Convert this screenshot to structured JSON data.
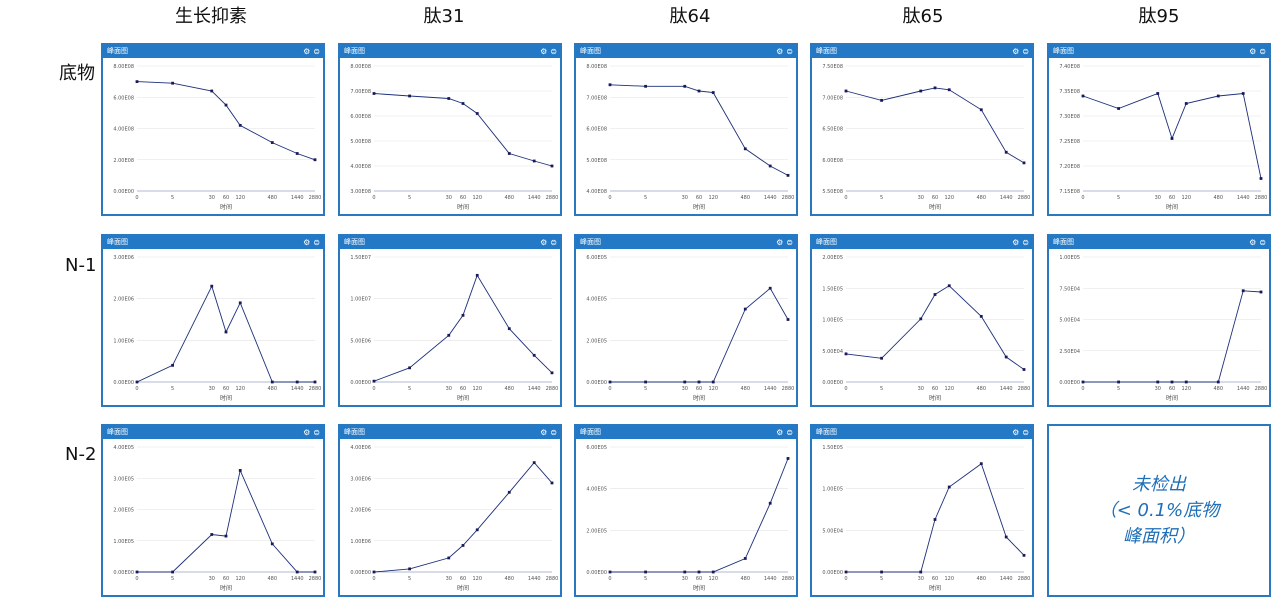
{
  "column_headers": [
    "生长抑素",
    "肽31",
    "肽64",
    "肽65",
    "肽95"
  ],
  "row_headers": [
    "底物",
    "N-1",
    "N-2"
  ],
  "panel_title": "峰面图",
  "icons": [
    "gear-icon",
    "download-icon"
  ],
  "not_detected": {
    "line1": "未检出",
    "line2": "（< 0.1%底物",
    "line3": "峰面积）"
  },
  "colors": {
    "frame": "#2a78bf",
    "header": "#2379c6",
    "line": "#1c2f7a",
    "point": "#1a1a5a",
    "grid": "#e2e2e2",
    "note": "#1f6fb8"
  },
  "chart_data": [
    {
      "type": "line",
      "row": 0,
      "col": 0,
      "xlabel": "时间",
      "categories": [
        "0",
        "5",
        "30",
        "60",
        "120",
        "480",
        "1440",
        "2880"
      ],
      "yticks": [
        "0.00E00",
        "2.00E08",
        "4.00E08",
        "6.00E08",
        "8.00E08"
      ],
      "ylim": [
        0,
        800000000
      ],
      "values": [
        700000000,
        690000000,
        640000000,
        550000000,
        420000000,
        310000000,
        240000000,
        200000000
      ]
    },
    {
      "type": "line",
      "row": 0,
      "col": 1,
      "xlabel": "时间",
      "categories": [
        "0",
        "5",
        "30",
        "60",
        "120",
        "480",
        "1440",
        "2880"
      ],
      "yticks": [
        "3.00E08",
        "4.00E08",
        "5.00E08",
        "6.00E08",
        "7.00E08",
        "8.00E08"
      ],
      "ylim": [
        300000000,
        800000000
      ],
      "values": [
        690000000,
        680000000,
        670000000,
        650000000,
        610000000,
        450000000,
        420000000,
        400000000
      ]
    },
    {
      "type": "line",
      "row": 0,
      "col": 2,
      "xlabel": "时间",
      "categories": [
        "0",
        "5",
        "30",
        "60",
        "120",
        "480",
        "1440",
        "2880"
      ],
      "yticks": [
        "4.00E08",
        "5.00E08",
        "6.00E08",
        "7.00E08",
        "8.00E08"
      ],
      "ylim": [
        400000000,
        800000000
      ],
      "values": [
        740000000,
        735000000,
        735000000,
        720000000,
        715000000,
        535000000,
        480000000,
        450000000
      ]
    },
    {
      "type": "line",
      "row": 0,
      "col": 3,
      "xlabel": "时间",
      "categories": [
        "0",
        "5",
        "30",
        "60",
        "120",
        "480",
        "1440",
        "2880"
      ],
      "yticks": [
        "5.50E08",
        "6.00E08",
        "6.50E08",
        "7.00E08",
        "7.50E08"
      ],
      "ylim": [
        550000000,
        750000000
      ],
      "values": [
        710000000,
        695000000,
        710000000,
        715000000,
        712000000,
        680000000,
        612000000,
        595000000
      ]
    },
    {
      "type": "line",
      "row": 0,
      "col": 4,
      "xlabel": "时间",
      "categories": [
        "0",
        "5",
        "30",
        "60",
        "120",
        "480",
        "1440",
        "2880"
      ],
      "yticks": [
        "7.15E08",
        "7.20E08",
        "7.25E08",
        "7.30E08",
        "7.35E08",
        "7.40E08"
      ],
      "ylim": [
        715000000,
        740000000
      ],
      "values": [
        734000000,
        731500000,
        734500000,
        725500000,
        732500000,
        734000000,
        734500000,
        717500000
      ]
    },
    {
      "type": "line",
      "row": 1,
      "col": 0,
      "xlabel": "时间",
      "categories": [
        "0",
        "5",
        "30",
        "60",
        "120",
        "480",
        "1440",
        "2880"
      ],
      "yticks": [
        "0.00E00",
        "1.00E06",
        "2.00E06",
        "3.00E06"
      ],
      "ylim": [
        0,
        3000000
      ],
      "values": [
        0,
        400000,
        2300000,
        1200000,
        1900000,
        0,
        0,
        0
      ]
    },
    {
      "type": "line",
      "row": 1,
      "col": 1,
      "xlabel": "时间",
      "categories": [
        "0",
        "5",
        "30",
        "60",
        "120",
        "480",
        "1440",
        "2880"
      ],
      "yticks": [
        "0.00E00",
        "5.00E06",
        "1.00E07",
        "1.50E07"
      ],
      "ylim": [
        0,
        15000000
      ],
      "values": [
        100000,
        1700000,
        5600000,
        8000000,
        12800000,
        6400000,
        3200000,
        1100000
      ]
    },
    {
      "type": "line",
      "row": 1,
      "col": 2,
      "xlabel": "时间",
      "categories": [
        "0",
        "5",
        "30",
        "60",
        "120",
        "480",
        "1440",
        "2880"
      ],
      "yticks": [
        "0.00E00",
        "2.00E05",
        "4.00E05",
        "6.00E05"
      ],
      "ylim": [
        0,
        600000
      ],
      "values": [
        0,
        0,
        0,
        0,
        0,
        350000,
        450000,
        300000
      ]
    },
    {
      "type": "line",
      "row": 1,
      "col": 3,
      "xlabel": "时间",
      "categories": [
        "0",
        "5",
        "30",
        "60",
        "120",
        "480",
        "1440",
        "2880"
      ],
      "yticks": [
        "0.00E00",
        "5.00E04",
        "1.00E05",
        "1.50E05",
        "2.00E05"
      ],
      "ylim": [
        0,
        200000
      ],
      "values": [
        45000,
        38000,
        101000,
        140000,
        154000,
        105000,
        40000,
        20000
      ]
    },
    {
      "type": "line",
      "row": 1,
      "col": 4,
      "xlabel": "时间",
      "categories": [
        "0",
        "5",
        "30",
        "60",
        "120",
        "480",
        "1440",
        "2880"
      ],
      "yticks": [
        "0.00E00",
        "2.50E04",
        "5.00E04",
        "7.50E04",
        "1.00E05"
      ],
      "ylim": [
        0,
        100000
      ],
      "values": [
        0,
        0,
        0,
        0,
        0,
        0,
        73000,
        72000
      ]
    },
    {
      "type": "line",
      "row": 2,
      "col": 0,
      "xlabel": "时间",
      "categories": [
        "0",
        "5",
        "30",
        "60",
        "120",
        "480",
        "1440",
        "2880"
      ],
      "yticks": [
        "0.00E00",
        "1.00E05",
        "2.00E05",
        "3.00E05",
        "4.00E05"
      ],
      "ylim": [
        0,
        400000
      ],
      "values": [
        0,
        0,
        120000,
        115000,
        325000,
        90000,
        0,
        0
      ]
    },
    {
      "type": "line",
      "row": 2,
      "col": 1,
      "xlabel": "时间",
      "categories": [
        "0",
        "5",
        "30",
        "60",
        "120",
        "480",
        "1440",
        "2880"
      ],
      "yticks": [
        "0.00E00",
        "1.00E06",
        "2.00E06",
        "3.00E06",
        "4.00E06"
      ],
      "ylim": [
        0,
        4000000
      ],
      "values": [
        0,
        100000,
        450000,
        850000,
        1350000,
        2550000,
        3500000,
        2850000
      ]
    },
    {
      "type": "line",
      "row": 2,
      "col": 2,
      "xlabel": "时间",
      "categories": [
        "0",
        "5",
        "30",
        "60",
        "120",
        "480",
        "1440",
        "2880"
      ],
      "yticks": [
        "0.00E00",
        "2.00E05",
        "4.00E05",
        "6.00E05"
      ],
      "ylim": [
        0,
        600000
      ],
      "values": [
        0,
        0,
        0,
        0,
        0,
        65000,
        330000,
        545000
      ]
    },
    {
      "type": "line",
      "row": 2,
      "col": 3,
      "xlabel": "时间",
      "categories": [
        "0",
        "5",
        "30",
        "60",
        "120",
        "480",
        "1440",
        "2880"
      ],
      "yticks": [
        "0.00E00",
        "5.00E04",
        "1.00E05",
        "1.50E05"
      ],
      "ylim": [
        0,
        150000
      ],
      "values": [
        0,
        0,
        0,
        63000,
        102000,
        130000,
        42000,
        20000
      ]
    }
  ]
}
